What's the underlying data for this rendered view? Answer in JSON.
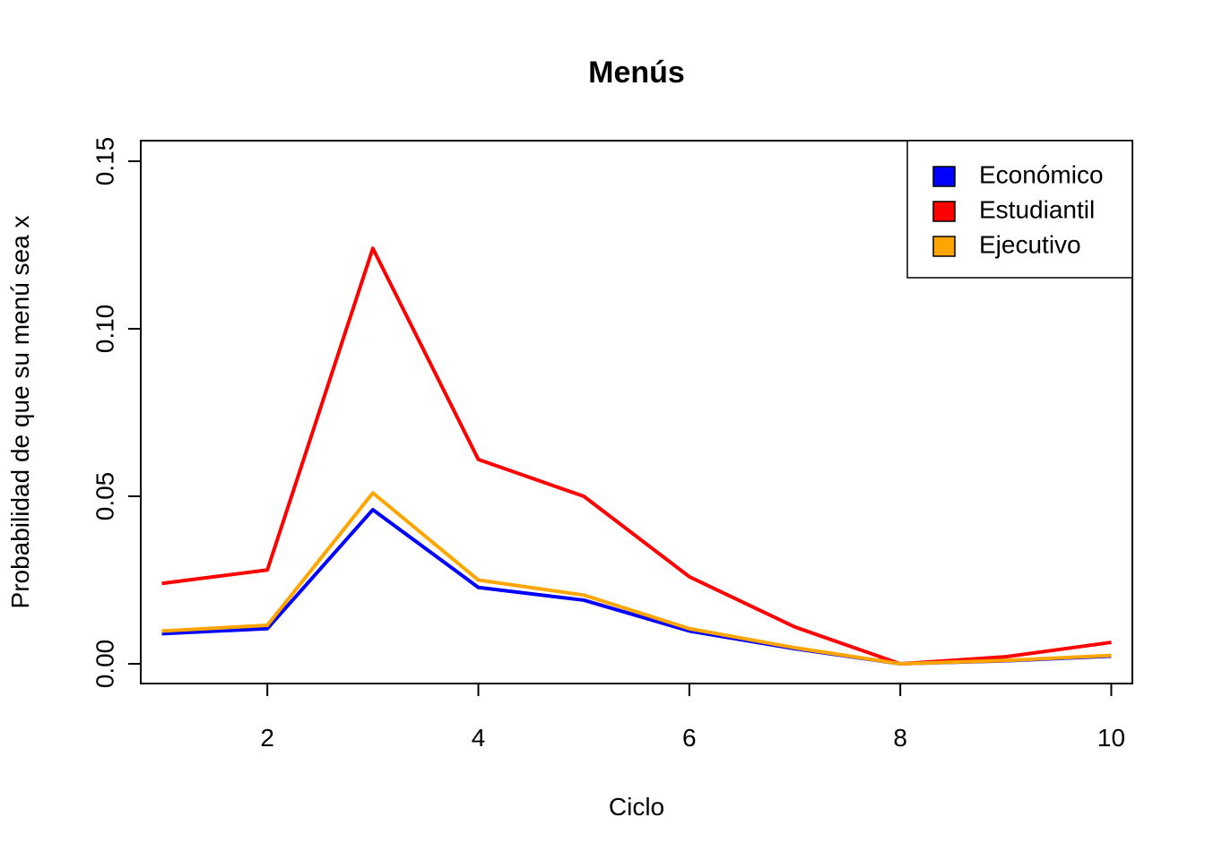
{
  "chart_data": {
    "type": "line",
    "title": "Menús",
    "xlabel": "Ciclo",
    "ylabel": "Probabilidad de que su menú sea x",
    "x": [
      1,
      2,
      3,
      4,
      5,
      6,
      7,
      8,
      9,
      10
    ],
    "xlim": [
      0.8,
      10.2
    ],
    "ylim": [
      0,
      0.15
    ],
    "x_ticks": [
      2,
      4,
      6,
      8,
      10
    ],
    "y_ticks": [
      0.0,
      0.05,
      0.1,
      0.15
    ],
    "x_tick_labels": [
      "2",
      "4",
      "6",
      "8",
      "10"
    ],
    "y_tick_labels": [
      "0.00",
      "0.05",
      "0.10",
      "0.15"
    ],
    "grid": false,
    "legend_position": "top-right",
    "series": [
      {
        "name": "Económico",
        "color": "#0000FF",
        "values": [
          0.009,
          0.0105,
          0.046,
          0.0228,
          0.019,
          0.0098,
          0.0045,
          0.0,
          0.0009,
          0.0023
        ]
      },
      {
        "name": "Estudiantil",
        "color": "#FF0000",
        "values": [
          0.024,
          0.028,
          0.124,
          0.061,
          0.05,
          0.026,
          0.011,
          0.0,
          0.0021,
          0.0064
        ]
      },
      {
        "name": "Ejecutivo",
        "color": "#FFA500",
        "values": [
          0.0098,
          0.0115,
          0.051,
          0.025,
          0.0205,
          0.0105,
          0.0048,
          0.0,
          0.001,
          0.0025
        ]
      }
    ]
  }
}
